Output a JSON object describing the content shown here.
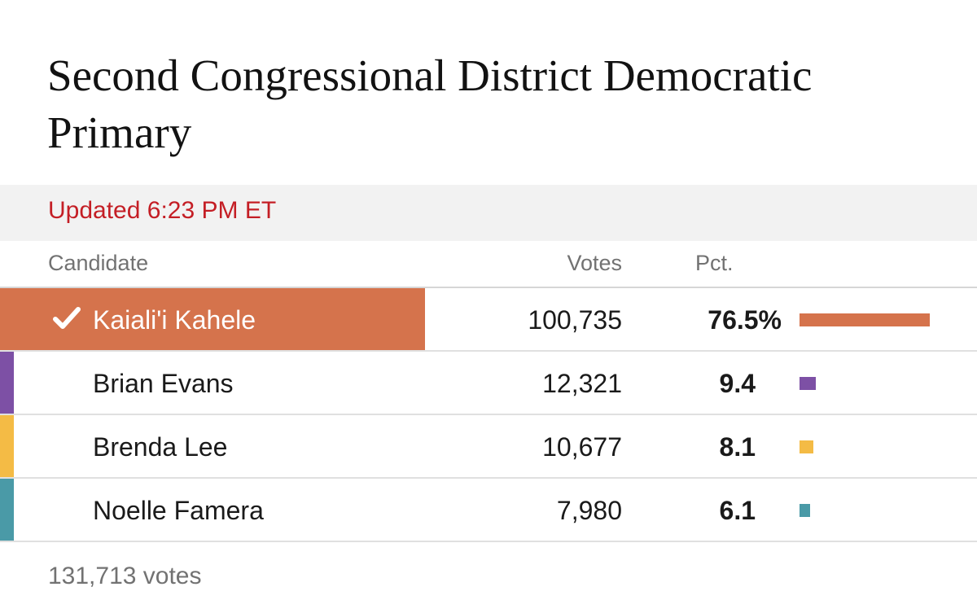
{
  "title": "Second Congressional District Democratic Primary",
  "updated": "Updated 6:23 PM ET",
  "headers": {
    "candidate": "Candidate",
    "votes": "Votes",
    "pct": "Pct."
  },
  "candidates": [
    {
      "name": "Kaiali'i Kahele",
      "votes": "100,735",
      "pct_label": "76.5%",
      "pct": 76.5,
      "color": "#d5734c",
      "winner": true
    },
    {
      "name": "Brian Evans",
      "votes": "12,321",
      "pct_label": "9.4",
      "pct": 9.4,
      "color": "#7d50a5",
      "winner": false
    },
    {
      "name": "Brenda Lee",
      "votes": "10,677",
      "pct_label": "8.1",
      "pct": 8.1,
      "color": "#f4bb45",
      "winner": false
    },
    {
      "name": "Noelle Famera",
      "votes": "7,980",
      "pct_label": "6.1",
      "pct": 6.1,
      "color": "#4a9aa7",
      "winner": false
    }
  ],
  "total_votes": "131,713 votes",
  "icons": {
    "winner": "checkmark-icon"
  },
  "chart_data": {
    "type": "bar",
    "categories": [
      "Kaiali'i Kahele",
      "Brian Evans",
      "Brenda Lee",
      "Noelle Famera"
    ],
    "values": [
      76.5,
      9.4,
      8.1,
      6.1
    ]
  }
}
